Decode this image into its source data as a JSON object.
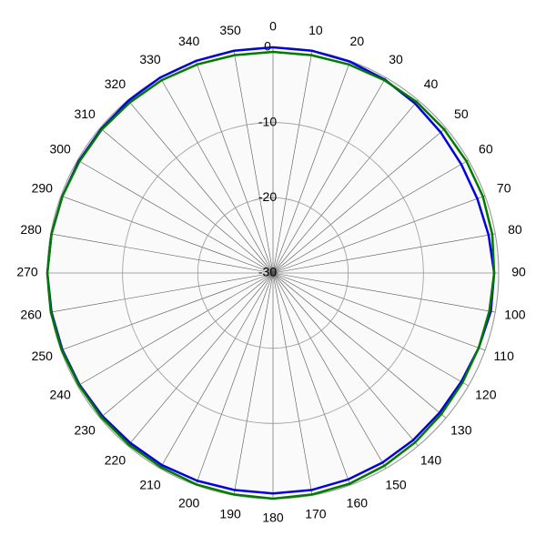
{
  "chart_data": {
    "type": "polar",
    "direction": "clockwise",
    "zero": "top",
    "theta": [
      0,
      10,
      20,
      30,
      40,
      50,
      60,
      70,
      80,
      90,
      100,
      110,
      120,
      130,
      140,
      150,
      160,
      170,
      180,
      190,
      200,
      210,
      220,
      230,
      240,
      250,
      260,
      270,
      280,
      290,
      300,
      310,
      320,
      330,
      340,
      350
    ],
    "thetaticks": [
      0,
      10,
      20,
      30,
      40,
      50,
      60,
      70,
      80,
      90,
      100,
      110,
      120,
      130,
      140,
      150,
      160,
      170,
      180,
      190,
      200,
      210,
      220,
      230,
      240,
      250,
      260,
      270,
      280,
      290,
      300,
      310,
      320,
      330,
      340,
      350
    ],
    "rlim": [
      -30,
      0
    ],
    "rticks": [
      0,
      -10,
      -20,
      -30
    ],
    "grid": true,
    "series": [
      {
        "color": "#0000e0",
        "values": [
          0,
          0,
          -0.1,
          -0.3,
          -0.6,
          -0.9,
          -1.1,
          -1.1,
          -0.9,
          -0.6,
          -0.6,
          -0.9,
          -1.1,
          -1.1,
          -1.0,
          -0.9,
          -0.8,
          -0.7,
          -0.7,
          -0.7,
          -0.6,
          -0.5,
          -0.5,
          -0.4,
          -0.3,
          -0.2,
          -0.1,
          0,
          -0.1,
          -0.2,
          -0.2,
          -0.2,
          -0.1,
          0,
          0,
          0
        ]
      },
      {
        "color": "#007a00",
        "values": [
          -0.6,
          -0.6,
          -0.5,
          -0.4,
          -0.3,
          -0.3,
          -0.3,
          -0.3,
          -0.4,
          -0.6,
          -0.8,
          -0.9,
          -0.9,
          -0.8,
          -0.6,
          -0.4,
          -0.2,
          -0.1,
          0,
          -0.1,
          -0.1,
          -0.2,
          -0.2,
          -0.2,
          -0.2,
          -0.1,
          0,
          0,
          -0.1,
          -0.2,
          -0.3,
          -0.3,
          -0.4,
          -0.4,
          -0.5,
          -0.6
        ]
      }
    ]
  }
}
